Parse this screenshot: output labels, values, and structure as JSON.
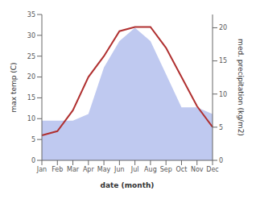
{
  "chart_data": {
    "type": "line",
    "categories": [
      "Jan",
      "Feb",
      "Mar",
      "Apr",
      "May",
      "Jun",
      "Jul",
      "Aug",
      "Sep",
      "Oct",
      "Nov",
      "Dec"
    ],
    "series": [
      {
        "type": "area",
        "axis": "y2",
        "color": "#bfc9f0",
        "values": [
          6,
          6,
          6,
          7,
          14,
          18,
          20,
          18,
          13,
          8,
          8,
          7
        ]
      },
      {
        "type": "line",
        "color": "#b03030",
        "values": [
          6,
          7,
          12,
          20,
          25,
          31,
          32,
          32,
          27,
          20,
          13,
          8
        ]
      }
    ],
    "xlabel": "date (month)",
    "ylabel": "max temp (C)",
    "y2label": "med. precipitation (kg/m2)",
    "ylim": [
      0,
      35
    ],
    "yticks": [
      0,
      5,
      10,
      15,
      20,
      25,
      30,
      35
    ],
    "y2lim": [
      0,
      22
    ],
    "y2ticks": [
      0,
      5,
      10,
      15,
      20
    ]
  }
}
